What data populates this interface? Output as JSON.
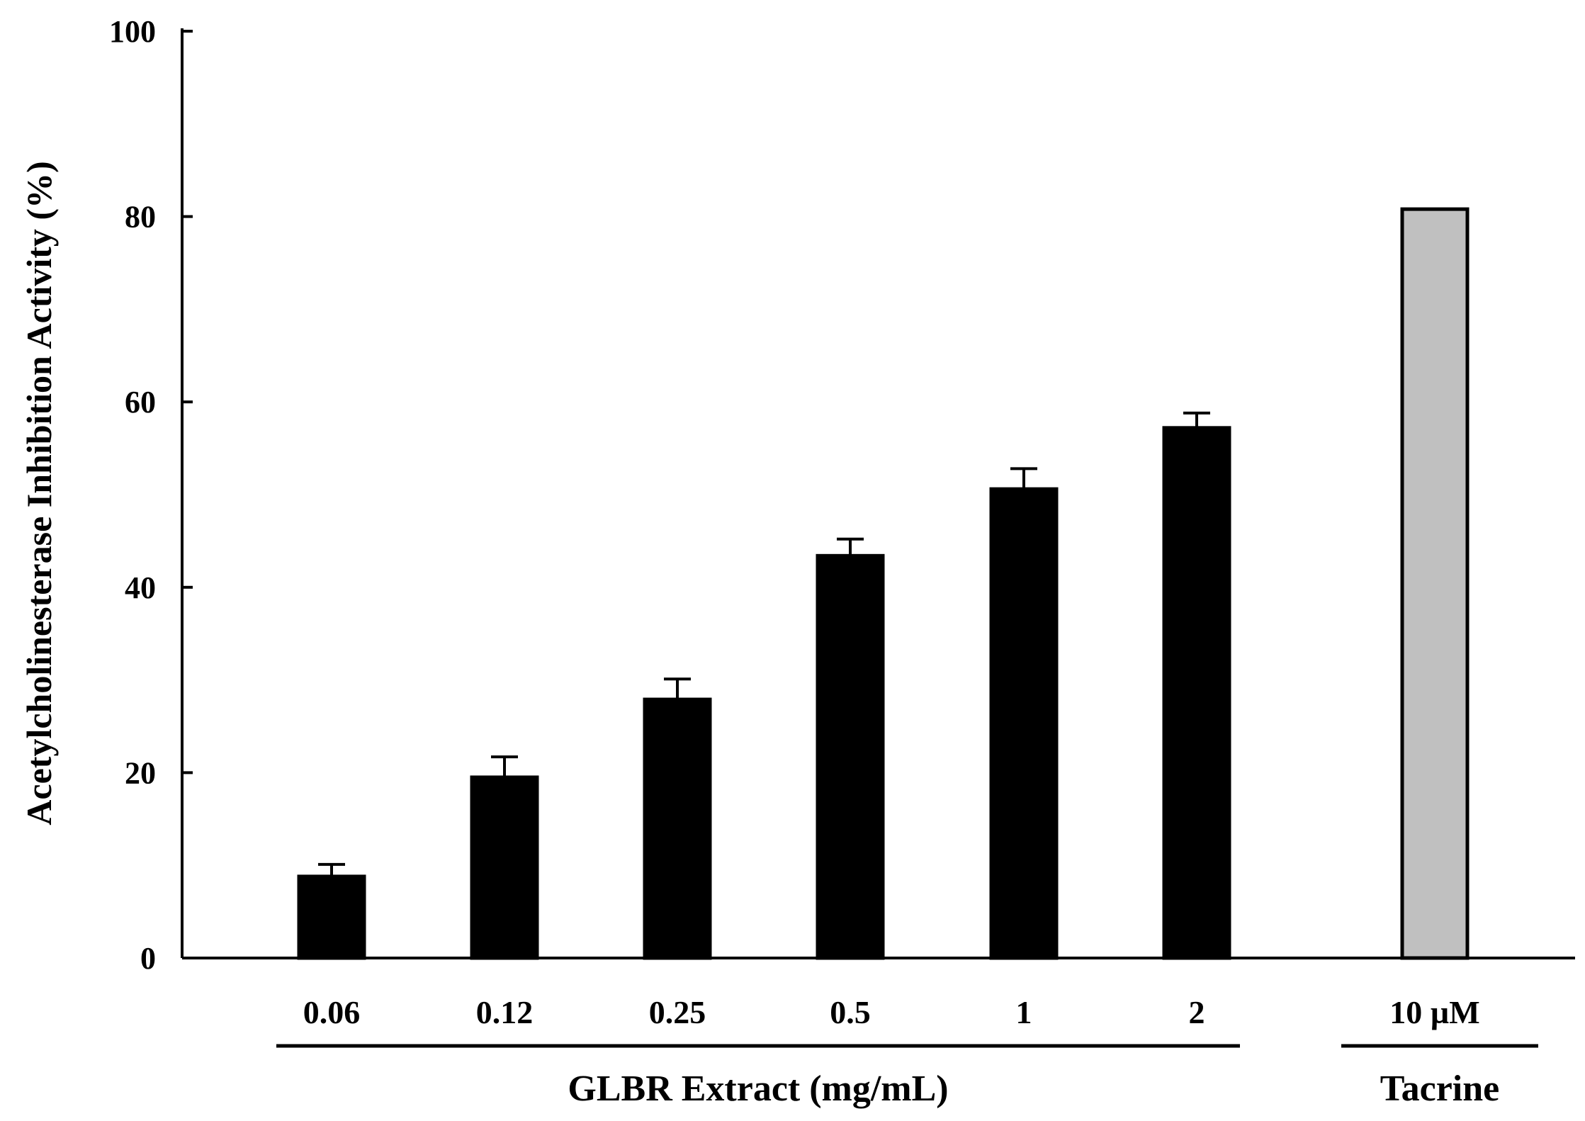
{
  "chart_data": {
    "type": "bar",
    "title": "",
    "ylabel": "Acetylcholinesterase Inhibition Activity (%)",
    "ylim": [
      0,
      100
    ],
    "yticks": [
      0,
      20,
      40,
      60,
      80,
      100
    ],
    "grid": false,
    "categories": [
      "0.06",
      "0.12",
      "0.25",
      "0.5",
      "1",
      "2",
      "10 µM"
    ],
    "values": [
      8.8,
      19.5,
      27.9,
      43.4,
      50.6,
      57.2,
      80.8
    ],
    "errors": [
      1.3,
      2.2,
      2.2,
      1.8,
      2.2,
      1.6,
      null
    ],
    "bar_colors": [
      "#000000",
      "#000000",
      "#000000",
      "#000000",
      "#000000",
      "#000000",
      "#c0c0c0"
    ],
    "groups": [
      {
        "label": "GLBR Extract (mg/mL)",
        "categories": [
          "0.06",
          "0.12",
          "0.25",
          "0.5",
          "1",
          "2"
        ]
      },
      {
        "label": "Tacrine",
        "categories": [
          "10 µM"
        ]
      }
    ]
  }
}
